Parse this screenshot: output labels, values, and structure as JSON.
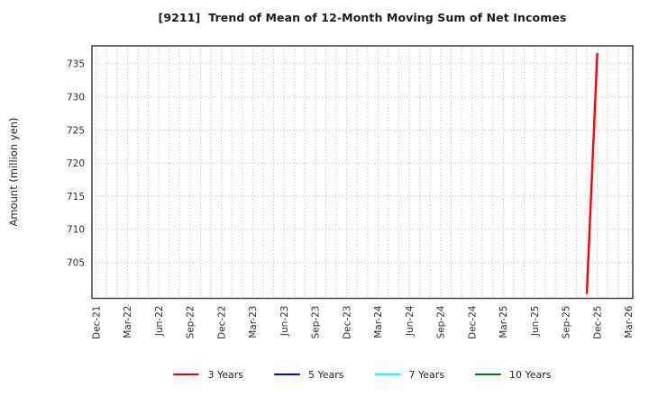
{
  "title": "[9211]  Trend of Mean of 12-Month Moving Sum of Net Incomes",
  "chart_data": {
    "type": "line",
    "title": "[9211]  Trend of Mean of 12-Month Moving Sum of Net Incomes",
    "xlabel": "",
    "ylabel": "Amount (million yen)",
    "grid": true,
    "grid_style": "dotted",
    "x_tick_labels": [
      "Dec-21",
      "Mar-22",
      "Jun-22",
      "Sep-22",
      "Dec-22",
      "Mar-23",
      "Jun-23",
      "Sep-23",
      "Dec-23",
      "Mar-24",
      "Jun-24",
      "Sep-24",
      "Dec-24",
      "Mar-25",
      "Jun-25",
      "Sep-25",
      "Dec-25",
      "Mar-26"
    ],
    "months_per_labeled_tick": 3,
    "total_months": 51,
    "xlim_month_index": [
      -0.4,
      51.4
    ],
    "y_ticks": [
      705,
      710,
      715,
      720,
      725,
      730,
      735
    ],
    "ylim": [
      699.6,
      737.7
    ],
    "legend_position": "bottom-center",
    "series": [
      {
        "name": "3 Years",
        "color": "#ff0000",
        "points": [
          {
            "x_label": "Nov-25",
            "month_index": 47,
            "value": 700.4
          },
          {
            "x_label": "Dec-25",
            "month_index": 48,
            "value": 736.5
          }
        ]
      },
      {
        "name": "5 Years",
        "color": "#0000ff",
        "points": []
      },
      {
        "name": "7 Years",
        "color": "#00ffff",
        "points": []
      },
      {
        "name": "10 Years",
        "color": "#008000",
        "points": []
      }
    ]
  }
}
